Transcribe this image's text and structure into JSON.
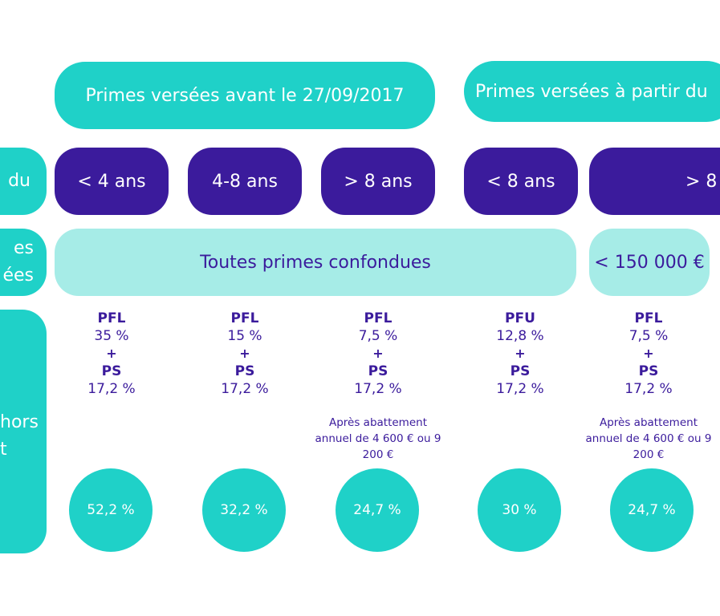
{
  "headers": {
    "avant": "Primes versées avant le 27/09/2017",
    "apres": "Primes versées à partir du"
  },
  "row_labels": {
    "duree": "du",
    "primes_line1": "es",
    "primes_line2": "ées",
    "taux_line1": "hors",
    "taux_line2": "t"
  },
  "durations": [
    "< 4 ans",
    "4-8 ans",
    "> 8 ans",
    "< 8 ans",
    "> 8"
  ],
  "primes": {
    "toutes": "Toutes primes confondues",
    "seuil": "< 150 000 €"
  },
  "columns": [
    {
      "pf_label": "PFL",
      "pf_rate": "35 %",
      "plus": "+",
      "ps_label": "PS",
      "ps_rate": "17,2 %",
      "note": "",
      "total": "52,2 %"
    },
    {
      "pf_label": "PFL",
      "pf_rate": "15 %",
      "plus": "+",
      "ps_label": "PS",
      "ps_rate": "17,2 %",
      "note": "",
      "total": "32,2 %"
    },
    {
      "pf_label": "PFL",
      "pf_rate": "7,5 %",
      "plus": "+",
      "ps_label": "PS",
      "ps_rate": "17,2 %",
      "note": "Après abattement annuel de 4 600 € ou 9 200 €",
      "total": "24,7 %"
    },
    {
      "pf_label": "PFU",
      "pf_rate": "12,8 %",
      "plus": "+",
      "ps_label": "PS",
      "ps_rate": "17,2 %",
      "note": "",
      "total": "30 %"
    },
    {
      "pf_label": "PFL",
      "pf_rate": "7,5 %",
      "plus": "+",
      "ps_label": "PS",
      "ps_rate": "17,2 %",
      "note": "Après abattement annuel de 4 600 € ou 9 200 €",
      "total": "24,7 %"
    }
  ],
  "colors": {
    "teal": "#1fd1c8",
    "light_teal": "#a6ece7",
    "purple": "#3b1b9c"
  }
}
